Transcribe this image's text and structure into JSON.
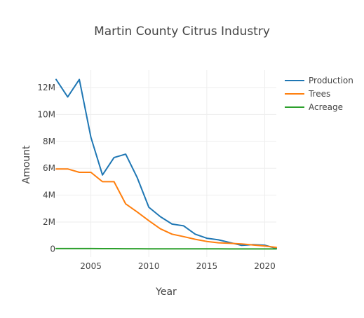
{
  "chart_data": {
    "type": "line",
    "title": "Martin County Citrus Industry",
    "xlabel": "Year",
    "ylabel": "Amount",
    "xlim": [
      2002,
      2021
    ],
    "ylim": [
      -600000,
      13300000
    ],
    "x_ticks": [
      2005,
      2010,
      2015,
      2020
    ],
    "x_tick_labels": [
      "2005",
      "2010",
      "2015",
      "2020"
    ],
    "y_ticks": [
      0,
      2000000,
      4000000,
      6000000,
      8000000,
      10000000,
      12000000
    ],
    "y_tick_labels": [
      "0",
      "2M",
      "4M",
      "6M",
      "8M",
      "10M",
      "12M"
    ],
    "grid": true,
    "legend_position": "top-right",
    "x": [
      2002,
      2003,
      2004,
      2005,
      2006,
      2007,
      2008,
      2009,
      2010,
      2011,
      2012,
      2013,
      2014,
      2015,
      2016,
      2017,
      2018,
      2019,
      2020,
      2021
    ],
    "series": [
      {
        "name": "Production",
        "color": "#1f77b4",
        "values": [
          12600000,
          11300000,
          12600000,
          8300000,
          5500000,
          6800000,
          7050000,
          5300000,
          3100000,
          2400000,
          1850000,
          1720000,
          1100000,
          800000,
          680000,
          480000,
          270000,
          320000,
          280000,
          50000
        ]
      },
      {
        "name": "Trees",
        "color": "#ff7f0e",
        "values": [
          5950000,
          5950000,
          5700000,
          5700000,
          5000000,
          5000000,
          3350000,
          2750000,
          2100000,
          1500000,
          1100000,
          920000,
          720000,
          560000,
          460000,
          420000,
          380000,
          300000,
          220000,
          120000
        ]
      },
      {
        "name": "Acreage",
        "color": "#2ca02c",
        "values": [
          30000,
          30000,
          29000,
          28000,
          26000,
          24000,
          21000,
          18000,
          16000,
          14000,
          12000,
          10000,
          9000,
          8000,
          7000,
          6000,
          5000,
          4500,
          4000,
          3500
        ]
      }
    ]
  }
}
